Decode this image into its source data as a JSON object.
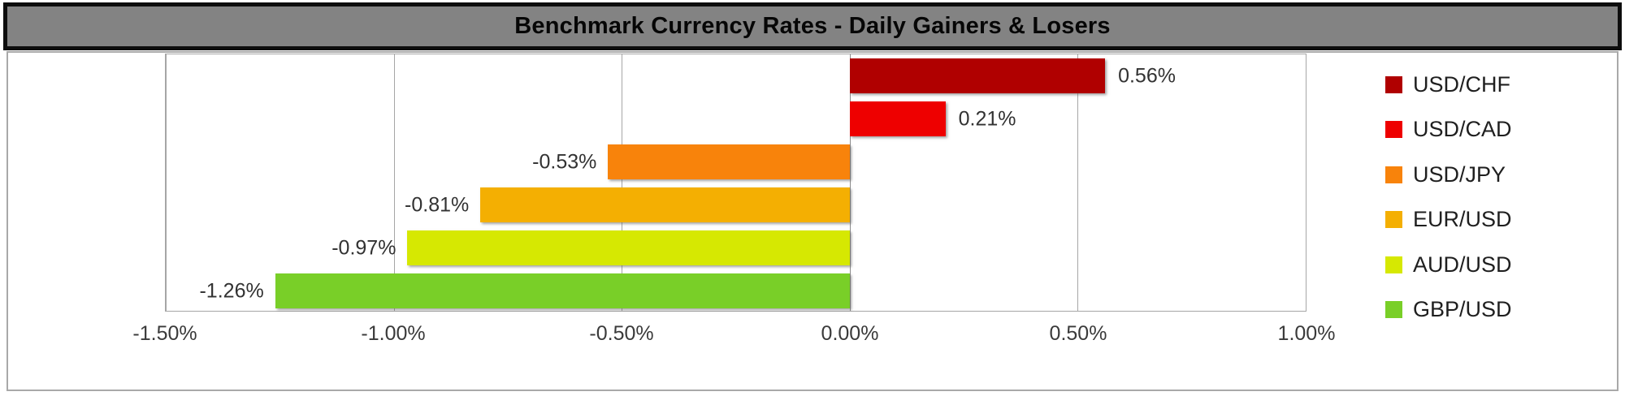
{
  "title": "Benchmark Currency Rates - Daily Gainers & Losers",
  "colors": {
    "title_background": "#838383",
    "title_border": "#0d0d0d",
    "chart_border": "#a9a9a9",
    "gridline": "#a6a6a6",
    "data_label_text": "#323232",
    "axis_label_text": "#3a3a3a"
  },
  "chart_data": {
    "type": "bar",
    "orientation": "horizontal",
    "title": "Benchmark Currency Rates - Daily Gainers & Losers",
    "categories": [
      "USD/CHF",
      "USD/CAD",
      "USD/JPY",
      "EUR/USD",
      "AUD/USD",
      "GBP/USD"
    ],
    "values": [
      0.56,
      0.21,
      -0.53,
      -0.81,
      -0.97,
      -1.26
    ],
    "value_labels": [
      "0.56%",
      "0.21%",
      "-0.53%",
      "-0.81%",
      "-0.97%",
      "-1.26%"
    ],
    "bar_colors": [
      "#B00000",
      "#EE0000",
      "#F8830B",
      "#F4AF02",
      "#D6E802",
      "#79CF28"
    ],
    "xlim": [
      -1.5,
      1.0
    ],
    "x_ticks": [
      -1.5,
      -1.0,
      -0.5,
      0.0,
      0.5,
      1.0
    ],
    "x_tick_labels": [
      "-1.50%",
      "-1.00%",
      "-0.50%",
      "0.00%",
      "0.50%",
      "1.00%"
    ],
    "grid": true,
    "legend_position": "right",
    "legend": [
      {
        "label": "USD/CHF",
        "color": "#B00000"
      },
      {
        "label": "USD/CAD",
        "color": "#EE0000"
      },
      {
        "label": "USD/JPY",
        "color": "#F8830B"
      },
      {
        "label": "EUR/USD",
        "color": "#F4AF02"
      },
      {
        "label": "AUD/USD",
        "color": "#D6E802"
      },
      {
        "label": "GBP/USD",
        "color": "#79CF28"
      }
    ]
  }
}
